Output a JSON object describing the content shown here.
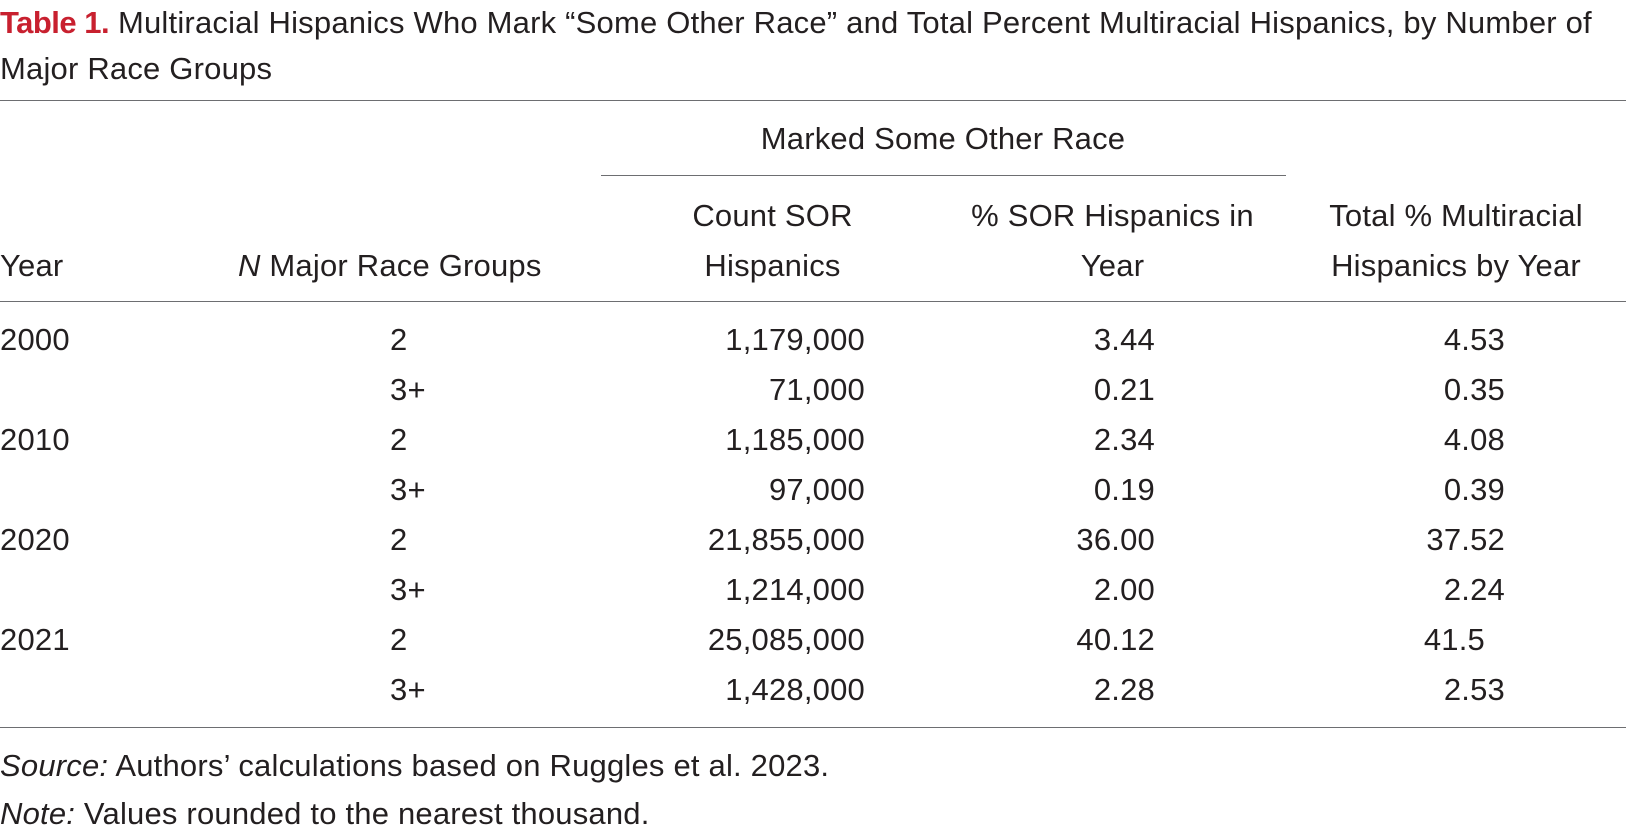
{
  "table": {
    "label": "Table 1.",
    "title": "Multiracial Hispanics Who Mark “Some Other Race” and Total Percent Multiracial Hispanics, by Number of Major Race Groups",
    "spanner": "Marked Some Other Race",
    "headers": {
      "year": "Year",
      "n_groups_italic": "N",
      "n_groups_rest": " Major Race Groups",
      "count_line1": "Count SOR",
      "count_line2": "Hispanics",
      "pct_line1": "% SOR Hispanics in",
      "pct_line2": "Year",
      "total_line1": "Total % Multiracial",
      "total_line2": "Hispanics by Year"
    },
    "rows": [
      {
        "year": "2000",
        "groups": "2",
        "count": "1,179,000",
        "pct": "3.44",
        "total": "4.53"
      },
      {
        "year": "",
        "groups": "3+",
        "count": "71,000",
        "pct": "0.21",
        "total": "0.35"
      },
      {
        "year": "2010",
        "groups": "2",
        "count": "1,185,000",
        "pct": "2.34",
        "total": "4.08"
      },
      {
        "year": "",
        "groups": "3+",
        "count": "97,000",
        "pct": "0.19",
        "total": "0.39"
      },
      {
        "year": "2020",
        "groups": "2",
        "count": "21,855,000",
        "pct": "36.00",
        "total": "37.52"
      },
      {
        "year": "",
        "groups": "3+",
        "count": "1,214,000",
        "pct": "2.00",
        "total": "2.24"
      },
      {
        "year": "2021",
        "groups": "2",
        "count": "25,085,000",
        "pct": "40.12",
        "total": "41.5"
      },
      {
        "year": "",
        "groups": "3+",
        "count": "1,428,000",
        "pct": "2.28",
        "total": "2.53"
      }
    ],
    "source_label": "Source:",
    "source_text": " Authors’ calculations based on Ruggles et al. 2023.",
    "note_label": "Note:",
    "note_text": " Values rounded to the nearest thousand."
  }
}
